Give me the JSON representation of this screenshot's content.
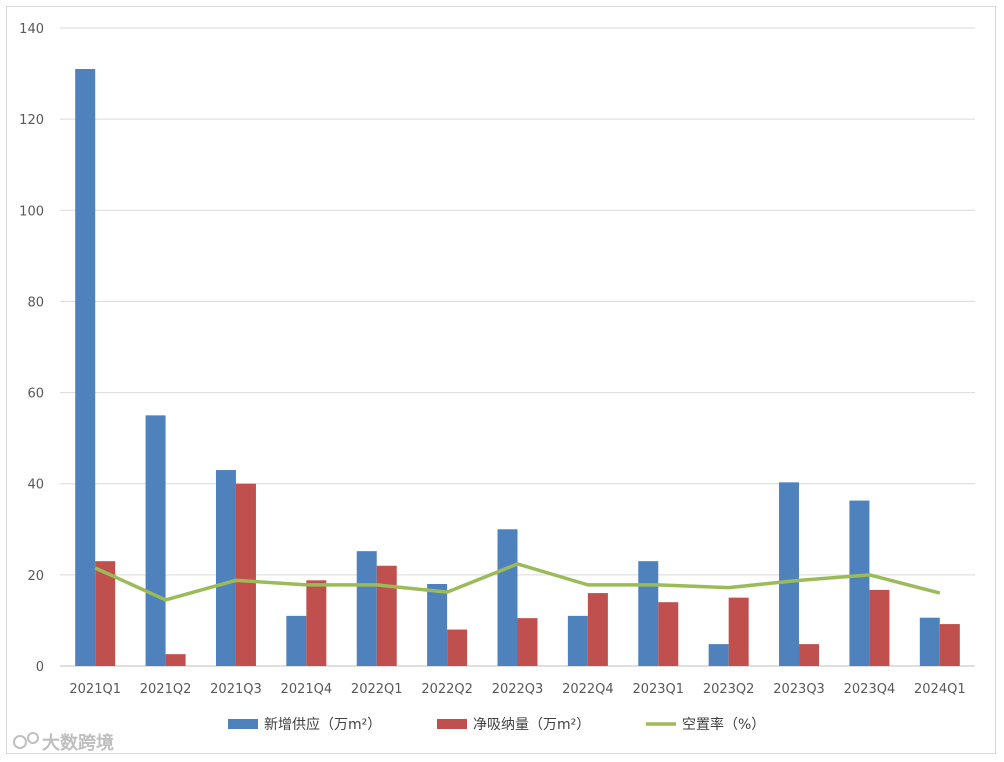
{
  "chart_data": {
    "type": "bar",
    "categories": [
      "2021Q1",
      "2021Q2",
      "2021Q3",
      "2021Q4",
      "2022Q1",
      "2022Q2",
      "2022Q3",
      "2022Q4",
      "2023Q1",
      "2023Q2",
      "2023Q3",
      "2023Q4",
      "2024Q1"
    ],
    "series": [
      {
        "name": "新增供应（万m²）",
        "type": "bar",
        "color": "#4f81bd",
        "values": [
          131,
          55,
          43,
          11,
          25.2,
          18,
          30,
          11,
          23,
          4.8,
          40.3,
          36.3,
          10.6
        ]
      },
      {
        "name": "净吸纳量（万m²）",
        "type": "bar",
        "color": "#c0504d",
        "values": [
          23,
          2.6,
          40,
          18.8,
          22,
          8,
          10.5,
          16,
          14,
          15,
          4.8,
          16.7,
          9.2
        ]
      },
      {
        "name": "空置率（%）",
        "type": "line",
        "color": "#9bbb59",
        "values": [
          21.5,
          14.5,
          18.8,
          17.8,
          17.8,
          16.2,
          22.4,
          17.8,
          17.8,
          17.2,
          18.8,
          20.0,
          16.0
        ]
      }
    ],
    "y_ticks": [
      "0",
      "20",
      "40",
      "60",
      "80",
      "100",
      "120",
      "140"
    ],
    "ylim": [
      0,
      140
    ],
    "grid": true,
    "legend_position": "bottom"
  },
  "watermark": "大数跨境"
}
